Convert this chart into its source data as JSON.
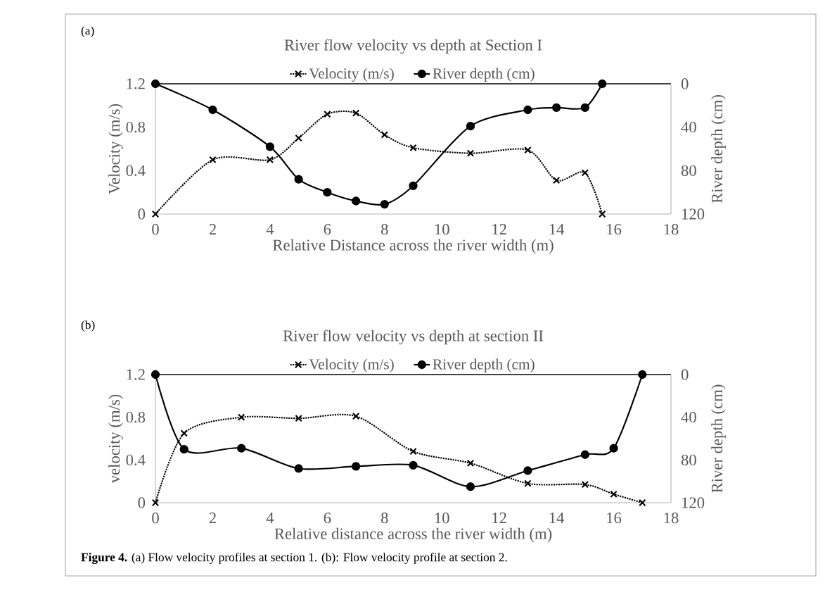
{
  "chart_data": [
    {
      "type": "line",
      "title": "River flow velocity vs depth at Section I",
      "xlabel": "Relative Distance across the river width (m)",
      "ylabel": "Velocity (m/s)",
      "y2label": "River depth (cm)",
      "annotations": [
        "(a)"
      ],
      "xlim": [
        0,
        18
      ],
      "xticks": [
        0,
        2,
        4,
        6,
        8,
        10,
        12,
        14,
        16,
        18
      ],
      "ylim": [
        0,
        1.2
      ],
      "yticks": [
        0,
        0.4,
        0.8,
        1.2
      ],
      "y2lim": [
        120,
        0
      ],
      "y2ticks": [
        0,
        40,
        80,
        120
      ],
      "legend": "top",
      "series": [
        {
          "name": "Velocity (m/s)",
          "color": "#000000",
          "marker": "cross",
          "line_style": "dotted",
          "x": [
            0,
            2,
            4,
            5,
            6,
            7,
            8,
            9,
            11,
            13,
            14,
            15,
            15.6
          ],
          "values": [
            0,
            0.5,
            0.5,
            0.7,
            0.92,
            0.93,
            0.73,
            0.61,
            0.56,
            0.59,
            0.31,
            0.38,
            0
          ]
        },
        {
          "name": "River depth (cm)",
          "color": "#000000",
          "marker": "circle",
          "line_style": "solid",
          "axis": "y2",
          "x": [
            0,
            2,
            4,
            5,
            6,
            7,
            8,
            9,
            11,
            13,
            14,
            15,
            15.6
          ],
          "values": [
            0,
            24,
            58,
            88,
            100,
            108,
            111,
            94,
            39,
            24,
            22,
            22,
            0
          ]
        }
      ]
    },
    {
      "type": "line",
      "title": "River flow velocity vs depth at section II",
      "xlabel": "Relative distance across the river width (m)",
      "ylabel": "velocity (m/s)",
      "y2label": "River depth (cm)",
      "annotations": [
        "(b)",
        "**Figure 4.** (a) Flow velocity profiles at section 1. (b): Flow velocity profile at section 2."
      ],
      "xlim": [
        0,
        18
      ],
      "xticks": [
        0,
        2,
        4,
        6,
        8,
        10,
        12,
        14,
        16,
        18
      ],
      "ylim": [
        0,
        1.2
      ],
      "yticks": [
        0,
        0.4,
        0.8,
        1.2
      ],
      "y2lim": [
        120,
        0
      ],
      "y2ticks": [
        0,
        40,
        80,
        120
      ],
      "legend": "top",
      "series": [
        {
          "name": "Velocity (m/s)",
          "color": "#000000",
          "marker": "cross",
          "line_style": "dotted",
          "x": [
            0,
            1,
            3,
            5,
            7,
            9,
            11,
            13,
            15,
            16,
            17
          ],
          "values": [
            0,
            0.65,
            0.8,
            0.79,
            0.81,
            0.48,
            0.37,
            0.18,
            0.17,
            0.08,
            0
          ]
        },
        {
          "name": "River depth (cm)",
          "color": "#000000",
          "marker": "circle",
          "line_style": "solid",
          "axis": "y2",
          "x": [
            0,
            1,
            3,
            5,
            7,
            9,
            11,
            13,
            15,
            16,
            17
          ],
          "values": [
            0,
            70,
            69,
            88,
            86,
            85,
            105,
            90,
            75,
            69,
            0
          ]
        }
      ]
    }
  ]
}
